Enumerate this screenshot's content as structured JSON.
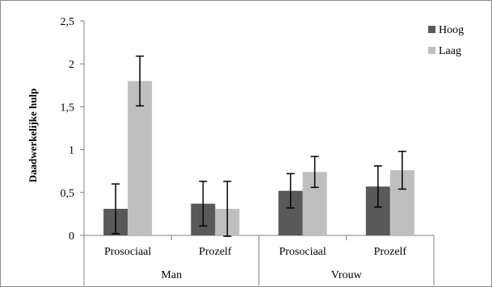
{
  "chart_data": {
    "type": "bar",
    "title": "",
    "ylabel": "Daadwerkelijke hulp",
    "xlabel": "",
    "ylim": [
      0,
      2.5
    ],
    "y_ticks": [
      "0",
      "0,5",
      "1",
      "1,5",
      "2",
      "2,5"
    ],
    "y_tick_values": [
      0,
      0.5,
      1,
      1.5,
      2,
      2.5
    ],
    "categories": [
      "Prosociaal",
      "Prozelf",
      "Prosociaal",
      "Prozelf"
    ],
    "groups": [
      {
        "label": "Man",
        "span": [
          0,
          1
        ]
      },
      {
        "label": "Vrouw",
        "span": [
          2,
          3
        ]
      }
    ],
    "series": [
      {
        "name": "Hoog",
        "color": "#595959",
        "values": [
          0.31,
          0.37,
          0.52,
          0.57
        ],
        "errors": [
          0.29,
          0.26,
          0.2,
          0.24
        ]
      },
      {
        "name": "Laag",
        "color": "#bfbfbf",
        "values": [
          1.8,
          0.31,
          0.74,
          0.76
        ],
        "errors": [
          0.29,
          0.32,
          0.18,
          0.22
        ]
      }
    ],
    "legend": {
      "position": "right"
    },
    "grid": false
  }
}
